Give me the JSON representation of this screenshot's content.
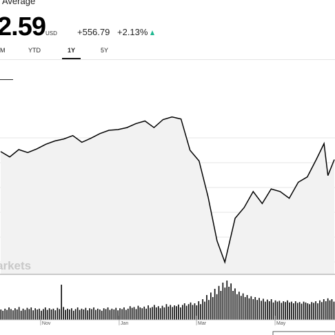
{
  "header": {
    "title_fragment": "Average",
    "price": "2.59",
    "currency": "USD",
    "change_abs": "+556.79",
    "change_pct": "+2.13%",
    "trend_icon": "up-triangle-icon"
  },
  "range_tabs": [
    {
      "label": "M",
      "active": false
    },
    {
      "label": "YTD",
      "active": false
    },
    {
      "label": "1Y",
      "active": true
    },
    {
      "label": "5Y",
      "active": false
    }
  ],
  "colors": {
    "up": "#1fb890",
    "line": "#000000",
    "area": "#f2f2f2",
    "grid": "#e5e5e5",
    "volume": "#111111"
  },
  "chart_data": {
    "type": "area",
    "title": "",
    "watermark": "arkets",
    "x_ticks": [
      "Nov",
      "Jan",
      "Mar",
      "May"
    ],
    "price_series": [
      {
        "date": "2019-10-01",
        "value": 26900
      },
      {
        "date": "2019-10-08",
        "value": 26500
      },
      {
        "date": "2019-10-15",
        "value": 27050
      },
      {
        "date": "2019-10-22",
        "value": 26830
      },
      {
        "date": "2019-10-29",
        "value": 27100
      },
      {
        "date": "2019-11-05",
        "value": 27450
      },
      {
        "date": "2019-11-12",
        "value": 27700
      },
      {
        "date": "2019-11-19",
        "value": 27850
      },
      {
        "date": "2019-11-26",
        "value": 28100
      },
      {
        "date": "2019-12-03",
        "value": 27600
      },
      {
        "date": "2019-12-10",
        "value": 27900
      },
      {
        "date": "2019-12-17",
        "value": 28250
      },
      {
        "date": "2019-12-24",
        "value": 28500
      },
      {
        "date": "2019-12-31",
        "value": 28550
      },
      {
        "date": "2020-01-07",
        "value": 28700
      },
      {
        "date": "2020-01-14",
        "value": 29000
      },
      {
        "date": "2020-01-21",
        "value": 29200
      },
      {
        "date": "2020-01-28",
        "value": 28700
      },
      {
        "date": "2020-02-04",
        "value": 29300
      },
      {
        "date": "2020-02-11",
        "value": 29500
      },
      {
        "date": "2020-02-18",
        "value": 29350
      },
      {
        "date": "2020-02-25",
        "value": 27000
      },
      {
        "date": "2020-03-03",
        "value": 26200
      },
      {
        "date": "2020-03-10",
        "value": 23500
      },
      {
        "date": "2020-03-17",
        "value": 20200
      },
      {
        "date": "2020-03-23",
        "value": 18600
      },
      {
        "date": "2020-03-31",
        "value": 21900
      },
      {
        "date": "2020-04-07",
        "value": 22700
      },
      {
        "date": "2020-04-14",
        "value": 23900
      },
      {
        "date": "2020-04-21",
        "value": 23000
      },
      {
        "date": "2020-04-28",
        "value": 24100
      },
      {
        "date": "2020-05-05",
        "value": 23900
      },
      {
        "date": "2020-05-12",
        "value": 23400
      },
      {
        "date": "2020-05-19",
        "value": 24600
      },
      {
        "date": "2020-05-26",
        "value": 25000
      },
      {
        "date": "2020-06-02",
        "value": 26300
      },
      {
        "date": "2020-06-08",
        "value": 27500
      },
      {
        "date": "2020-06-11",
        "value": 25100
      },
      {
        "date": "2020-06-16",
        "value": 26300
      }
    ],
    "volume_series": [
      0.25,
      0.22,
      0.27,
      0.24,
      0.3,
      0.26,
      0.23,
      0.28,
      0.25,
      0.31,
      0.22,
      0.27,
      0.24,
      0.29,
      0.26,
      0.3,
      0.23,
      0.28,
      0.25,
      0.27,
      0.22,
      0.26,
      0.3,
      0.24,
      0.28,
      0.25,
      0.27,
      0.23,
      0.29,
      0.26,
      0.85,
      0.31,
      0.24,
      0.27,
      0.25,
      0.28,
      0.22,
      0.26,
      0.3,
      0.24,
      0.27,
      0.25,
      0.29,
      0.23,
      0.28,
      0.26,
      0.3,
      0.24,
      0.27,
      0.25,
      0.22,
      0.28,
      0.26,
      0.3,
      0.24,
      0.27,
      0.25,
      0.29,
      0.23,
      0.28,
      0.26,
      0.3,
      0.24,
      0.27,
      0.33,
      0.29,
      0.31,
      0.26,
      0.34,
      0.3,
      0.28,
      0.32,
      0.27,
      0.35,
      0.29,
      0.31,
      0.36,
      0.3,
      0.33,
      0.28,
      0.34,
      0.3,
      0.38,
      0.32,
      0.36,
      0.31,
      0.35,
      0.33,
      0.37,
      0.3,
      0.36,
      0.4,
      0.34,
      0.38,
      0.42,
      0.36,
      0.4,
      0.35,
      0.45,
      0.38,
      0.5,
      0.44,
      0.6,
      0.48,
      0.66,
      0.55,
      0.75,
      0.62,
      0.82,
      0.7,
      0.9,
      0.78,
      0.95,
      0.8,
      0.88,
      0.7,
      0.76,
      0.62,
      0.68,
      0.58,
      0.64,
      0.55,
      0.6,
      0.52,
      0.57,
      0.5,
      0.55,
      0.48,
      0.53,
      0.46,
      0.51,
      0.44,
      0.49,
      0.45,
      0.5,
      0.42,
      0.47,
      0.44,
      0.46,
      0.41,
      0.45,
      0.43,
      0.47,
      0.42,
      0.44,
      0.4,
      0.45,
      0.41,
      0.43,
      0.39,
      0.44,
      0.42,
      0.4,
      0.38,
      0.43,
      0.41,
      0.45,
      0.4,
      0.47,
      0.43,
      0.5,
      0.45,
      0.52,
      0.47,
      0.5,
      0.44
    ]
  }
}
